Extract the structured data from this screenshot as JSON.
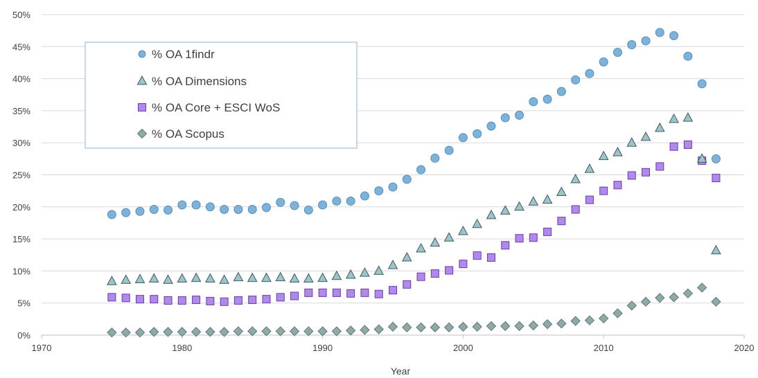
{
  "chart_data": {
    "type": "scatter",
    "xlabel": "Year",
    "ylabel": "",
    "xlim": [
      1970,
      2020
    ],
    "ylim": [
      0,
      50
    ],
    "x_ticks": [
      1970,
      1980,
      1990,
      2000,
      2010,
      2020
    ],
    "y_ticks": [
      0,
      5,
      10,
      15,
      20,
      25,
      30,
      35,
      40,
      45,
      50
    ],
    "y_tick_labels": [
      "0%",
      "5%",
      "10%",
      "15%",
      "20%",
      "25%",
      "30%",
      "35%",
      "40%",
      "45%",
      "50%"
    ],
    "grid": "horizontal",
    "legend_position": "top-left",
    "x": [
      1975,
      1976,
      1977,
      1978,
      1979,
      1980,
      1981,
      1982,
      1983,
      1984,
      1985,
      1986,
      1987,
      1988,
      1989,
      1990,
      1991,
      1992,
      1993,
      1994,
      1995,
      1996,
      1997,
      1998,
      1999,
      2000,
      2001,
      2002,
      2003,
      2004,
      2005,
      2006,
      2007,
      2008,
      2009,
      2010,
      2011,
      2012,
      2013,
      2014,
      2015,
      2016,
      2017,
      2018
    ],
    "series": [
      {
        "name": "% OA 1findr",
        "marker": "circle",
        "color": "#7fb2d6",
        "stroke": "#4f8fbf",
        "values": [
          18.8,
          19.1,
          19.3,
          19.6,
          19.5,
          20.3,
          20.3,
          20.0,
          19.6,
          19.6,
          19.6,
          19.9,
          20.7,
          20.2,
          19.5,
          20.3,
          20.9,
          20.9,
          21.7,
          22.5,
          23.1,
          24.3,
          25.8,
          27.6,
          28.8,
          30.8,
          31.4,
          32.6,
          33.9,
          34.3,
          36.4,
          36.8,
          38.0,
          39.8,
          40.8,
          42.6,
          44.1,
          45.3,
          45.9,
          47.2,
          46.7,
          43.5,
          39.2,
          27.5
        ]
      },
      {
        "name": "% OA Dimensions",
        "marker": "triangle",
        "color": "#9ec3c8",
        "stroke": "#3c5a5e",
        "values": [
          8.4,
          8.6,
          8.7,
          8.8,
          8.6,
          8.8,
          8.9,
          8.8,
          8.6,
          9.0,
          8.9,
          8.9,
          9.0,
          8.8,
          8.8,
          8.9,
          9.2,
          9.4,
          9.7,
          10.0,
          10.9,
          12.1,
          13.5,
          14.4,
          15.2,
          16.2,
          17.3,
          18.7,
          19.4,
          20.0,
          20.8,
          21.1,
          22.3,
          24.3,
          25.9,
          27.9,
          28.5,
          30.0,
          30.9,
          32.3,
          33.7,
          33.9,
          27.5,
          13.2
        ]
      },
      {
        "name": "% OA Core + ESCI WoS",
        "marker": "square",
        "color": "#b08ae8",
        "stroke": "#6b3aa8",
        "values": [
          5.9,
          5.8,
          5.6,
          5.6,
          5.4,
          5.4,
          5.5,
          5.3,
          5.2,
          5.4,
          5.5,
          5.6,
          5.9,
          6.1,
          6.6,
          6.6,
          6.6,
          6.5,
          6.6,
          6.4,
          7.0,
          7.9,
          9.1,
          9.6,
          10.1,
          11.1,
          12.4,
          12.1,
          14.0,
          15.1,
          15.2,
          16.1,
          17.8,
          19.6,
          21.1,
          22.5,
          23.4,
          24.9,
          25.4,
          26.3,
          29.4,
          29.7,
          27.2,
          24.5
        ]
      },
      {
        "name": "% OA Scopus",
        "marker": "diamond",
        "color": "#8fa8a8",
        "stroke": "#5f7878",
        "values": [
          0.4,
          0.4,
          0.4,
          0.5,
          0.5,
          0.5,
          0.5,
          0.5,
          0.5,
          0.6,
          0.6,
          0.6,
          0.6,
          0.6,
          0.6,
          0.6,
          0.6,
          0.7,
          0.8,
          0.9,
          1.3,
          1.2,
          1.2,
          1.2,
          1.2,
          1.3,
          1.3,
          1.4,
          1.4,
          1.4,
          1.5,
          1.7,
          1.8,
          2.2,
          2.3,
          2.6,
          3.4,
          4.6,
          5.2,
          5.8,
          5.9,
          6.5,
          7.4,
          5.2
        ]
      }
    ]
  }
}
